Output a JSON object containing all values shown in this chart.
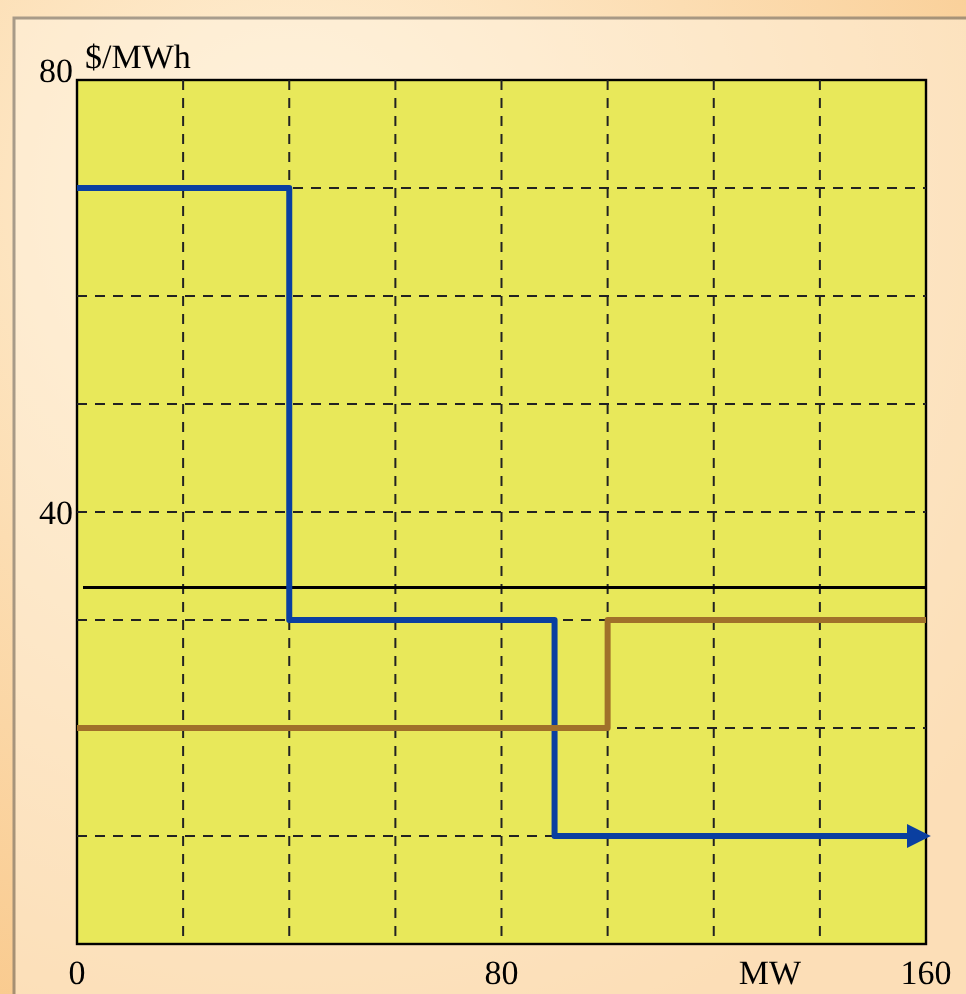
{
  "chart_data": {
    "type": "step",
    "xlabel": "MW",
    "ylabel": "$/MWh",
    "xlim": [
      0,
      160
    ],
    "ylim": [
      0,
      80
    ],
    "xticks": [
      0,
      {
        "value": 20,
        "label": null
      },
      {
        "value": 40,
        "label": null
      },
      {
        "value": 60,
        "label": null
      },
      80,
      {
        "value": 100,
        "label": null
      },
      {
        "value": 120,
        "label": null
      },
      {
        "value": 140,
        "label": null
      },
      160
    ],
    "yticks": [
      {
        "value": 10,
        "label": null
      },
      {
        "value": 20,
        "label": null
      },
      {
        "value": 30,
        "label": null
      },
      40,
      {
        "value": 50,
        "label": null
      },
      {
        "value": 60,
        "label": null
      },
      {
        "value": 70,
        "label": null
      },
      80
    ],
    "grid": true,
    "line_style": "solid",
    "marker": "none",
    "series": [
      {
        "color": "#0a3fa0",
        "x": [
          0,
          40,
          90,
          160
        ],
        "values": [
          70,
          30,
          10,
          10
        ]
      },
      {
        "color": "#a0702a",
        "x": [
          0,
          100,
          160
        ],
        "values": [
          20,
          30,
          30
        ]
      }
    ],
    "ref_lines": [
      {
        "axis": "y",
        "value": 33,
        "label": null,
        "color": "#000000"
      }
    ]
  }
}
